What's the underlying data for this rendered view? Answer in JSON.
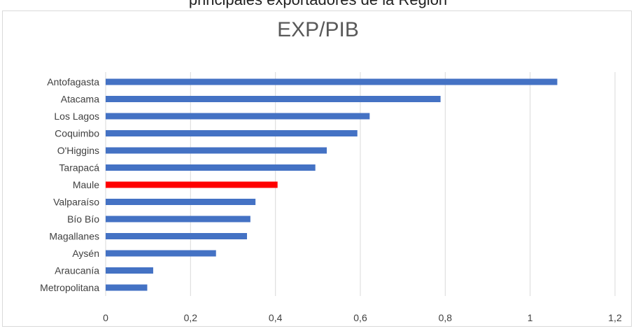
{
  "caption": "principales exportadores de la Región",
  "chart_data": {
    "type": "bar",
    "orientation": "horizontal",
    "title": "EXP/PIB",
    "xlabel": "",
    "ylabel": "",
    "categories": [
      "Antofagasta",
      "Atacama",
      "Los Lagos",
      "Coquimbo",
      "O'Higgins",
      "Tarapacá",
      "Maule",
      "Valparaíso",
      "Bío Bío",
      "Magallanes",
      "Aysén",
      "Araucanía",
      "Metropolitana"
    ],
    "values": [
      1.064,
      0.789,
      0.622,
      0.593,
      0.521,
      0.494,
      0.405,
      0.353,
      0.341,
      0.333,
      0.26,
      0.112,
      0.098
    ],
    "xlim": [
      0,
      1.2
    ],
    "xticks": [
      "0",
      "0,2",
      "0,4",
      "0,6",
      "0,8",
      "1",
      "1,2"
    ],
    "grid": "vertical",
    "legend": "none",
    "colors": {
      "default": "#4472c4",
      "highlight": "#ff0000",
      "grid": "#d9d9d9"
    },
    "highlight_category": "Maule"
  }
}
